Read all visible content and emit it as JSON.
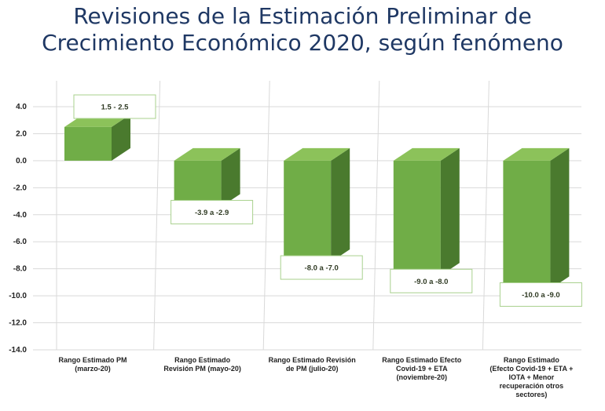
{
  "title_line1": "Revisiones de la Estimación Preliminar de",
  "title_line2": "Crecimiento Económico 2020, según fenómeno",
  "chart_data": {
    "type": "bar",
    "title": "Revisiones de la Estimación Preliminar de Crecimiento Económico 2020, según fenómeno",
    "categories": [
      [
        "Rango Estimado PM",
        "(marzo-20)"
      ],
      [
        "Rango Estimado",
        "Revisión PM (mayo-20)"
      ],
      [
        "Rango Estimado Revisión",
        "de PM (julio-20)"
      ],
      [
        "Rango Estimado Efecto",
        "Covid-19 + ETA",
        "(noviembre-20)"
      ],
      [
        "Rango Estimado",
        "(Efecto Covid-19 + ETA +",
        "IOTA  + Menor",
        "recuperación otros",
        "sectores)"
      ]
    ],
    "ranges": [
      [
        1.5,
        2.5
      ],
      [
        -3.9,
        -2.9
      ],
      [
        -8.0,
        -7.0
      ],
      [
        -9.0,
        -8.0
      ],
      [
        -10.0,
        -9.0
      ]
    ],
    "values": [
      2.0,
      -3.4,
      -7.5,
      -8.5,
      -9.5
    ],
    "data_labels": [
      "1.5 - 2.5",
      "-3.9 a  -2.9",
      "-8.0 a -7.0",
      "-9.0 a -8.0",
      "-10.0 a -9.0"
    ],
    "yticks": [
      "4.0",
      "2.0",
      "0.0",
      "-2.0",
      "-4.0",
      "-6.0",
      "-8.0",
      "-10.0",
      "-12.0",
      "-14.0"
    ],
    "ylim": [
      -14,
      4
    ],
    "grid": true,
    "colors": {
      "bar_front": "#70ad47",
      "bar_side": "#4a7a2e",
      "bar_top": "#8cc25a",
      "label_border": "#a9d18e",
      "title": "#1f3864"
    }
  }
}
